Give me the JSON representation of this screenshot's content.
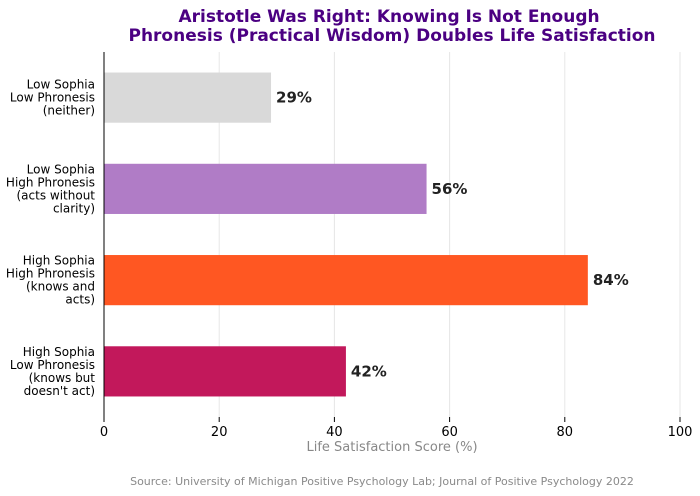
{
  "chart_data": {
    "type": "bar",
    "orientation": "horizontal",
    "title_lines": [
      "Aristotle Was Right: Knowing Is Not Enough",
      "Phronesis (Practical Wisdom) Doubles Life Satisfaction"
    ],
    "categories": [
      [
        "Low Sophia",
        "Low Phronesis",
        "(neither)"
      ],
      [
        "Low Sophia",
        "High Phronesis",
        "(acts without",
        "clarity)"
      ],
      [
        "High Sophia",
        "High Phronesis",
        "(knows and",
        "acts)"
      ],
      [
        "High Sophia",
        "Low Phronesis",
        "(knows but",
        "doesn't act)"
      ]
    ],
    "values": [
      29,
      56,
      84,
      42
    ],
    "value_labels": [
      "29%",
      "56%",
      "84%",
      "42%"
    ],
    "colors": [
      "#d9d9d9",
      "#b07cc6",
      "#ff5722",
      "#c2185b"
    ],
    "xlabel": "Life Satisfaction Score (%)",
    "xlim": [
      0,
      100
    ],
    "xticks": [
      0,
      20,
      40,
      60,
      80,
      100
    ],
    "xtick_labels": [
      "0",
      "20",
      "40",
      "60",
      "80",
      "100"
    ],
    "grid": true,
    "title_color": "#4b0082",
    "source": "Source: University of Michigan Positive Psychology Lab; Journal of Positive Psychology 2022"
  }
}
